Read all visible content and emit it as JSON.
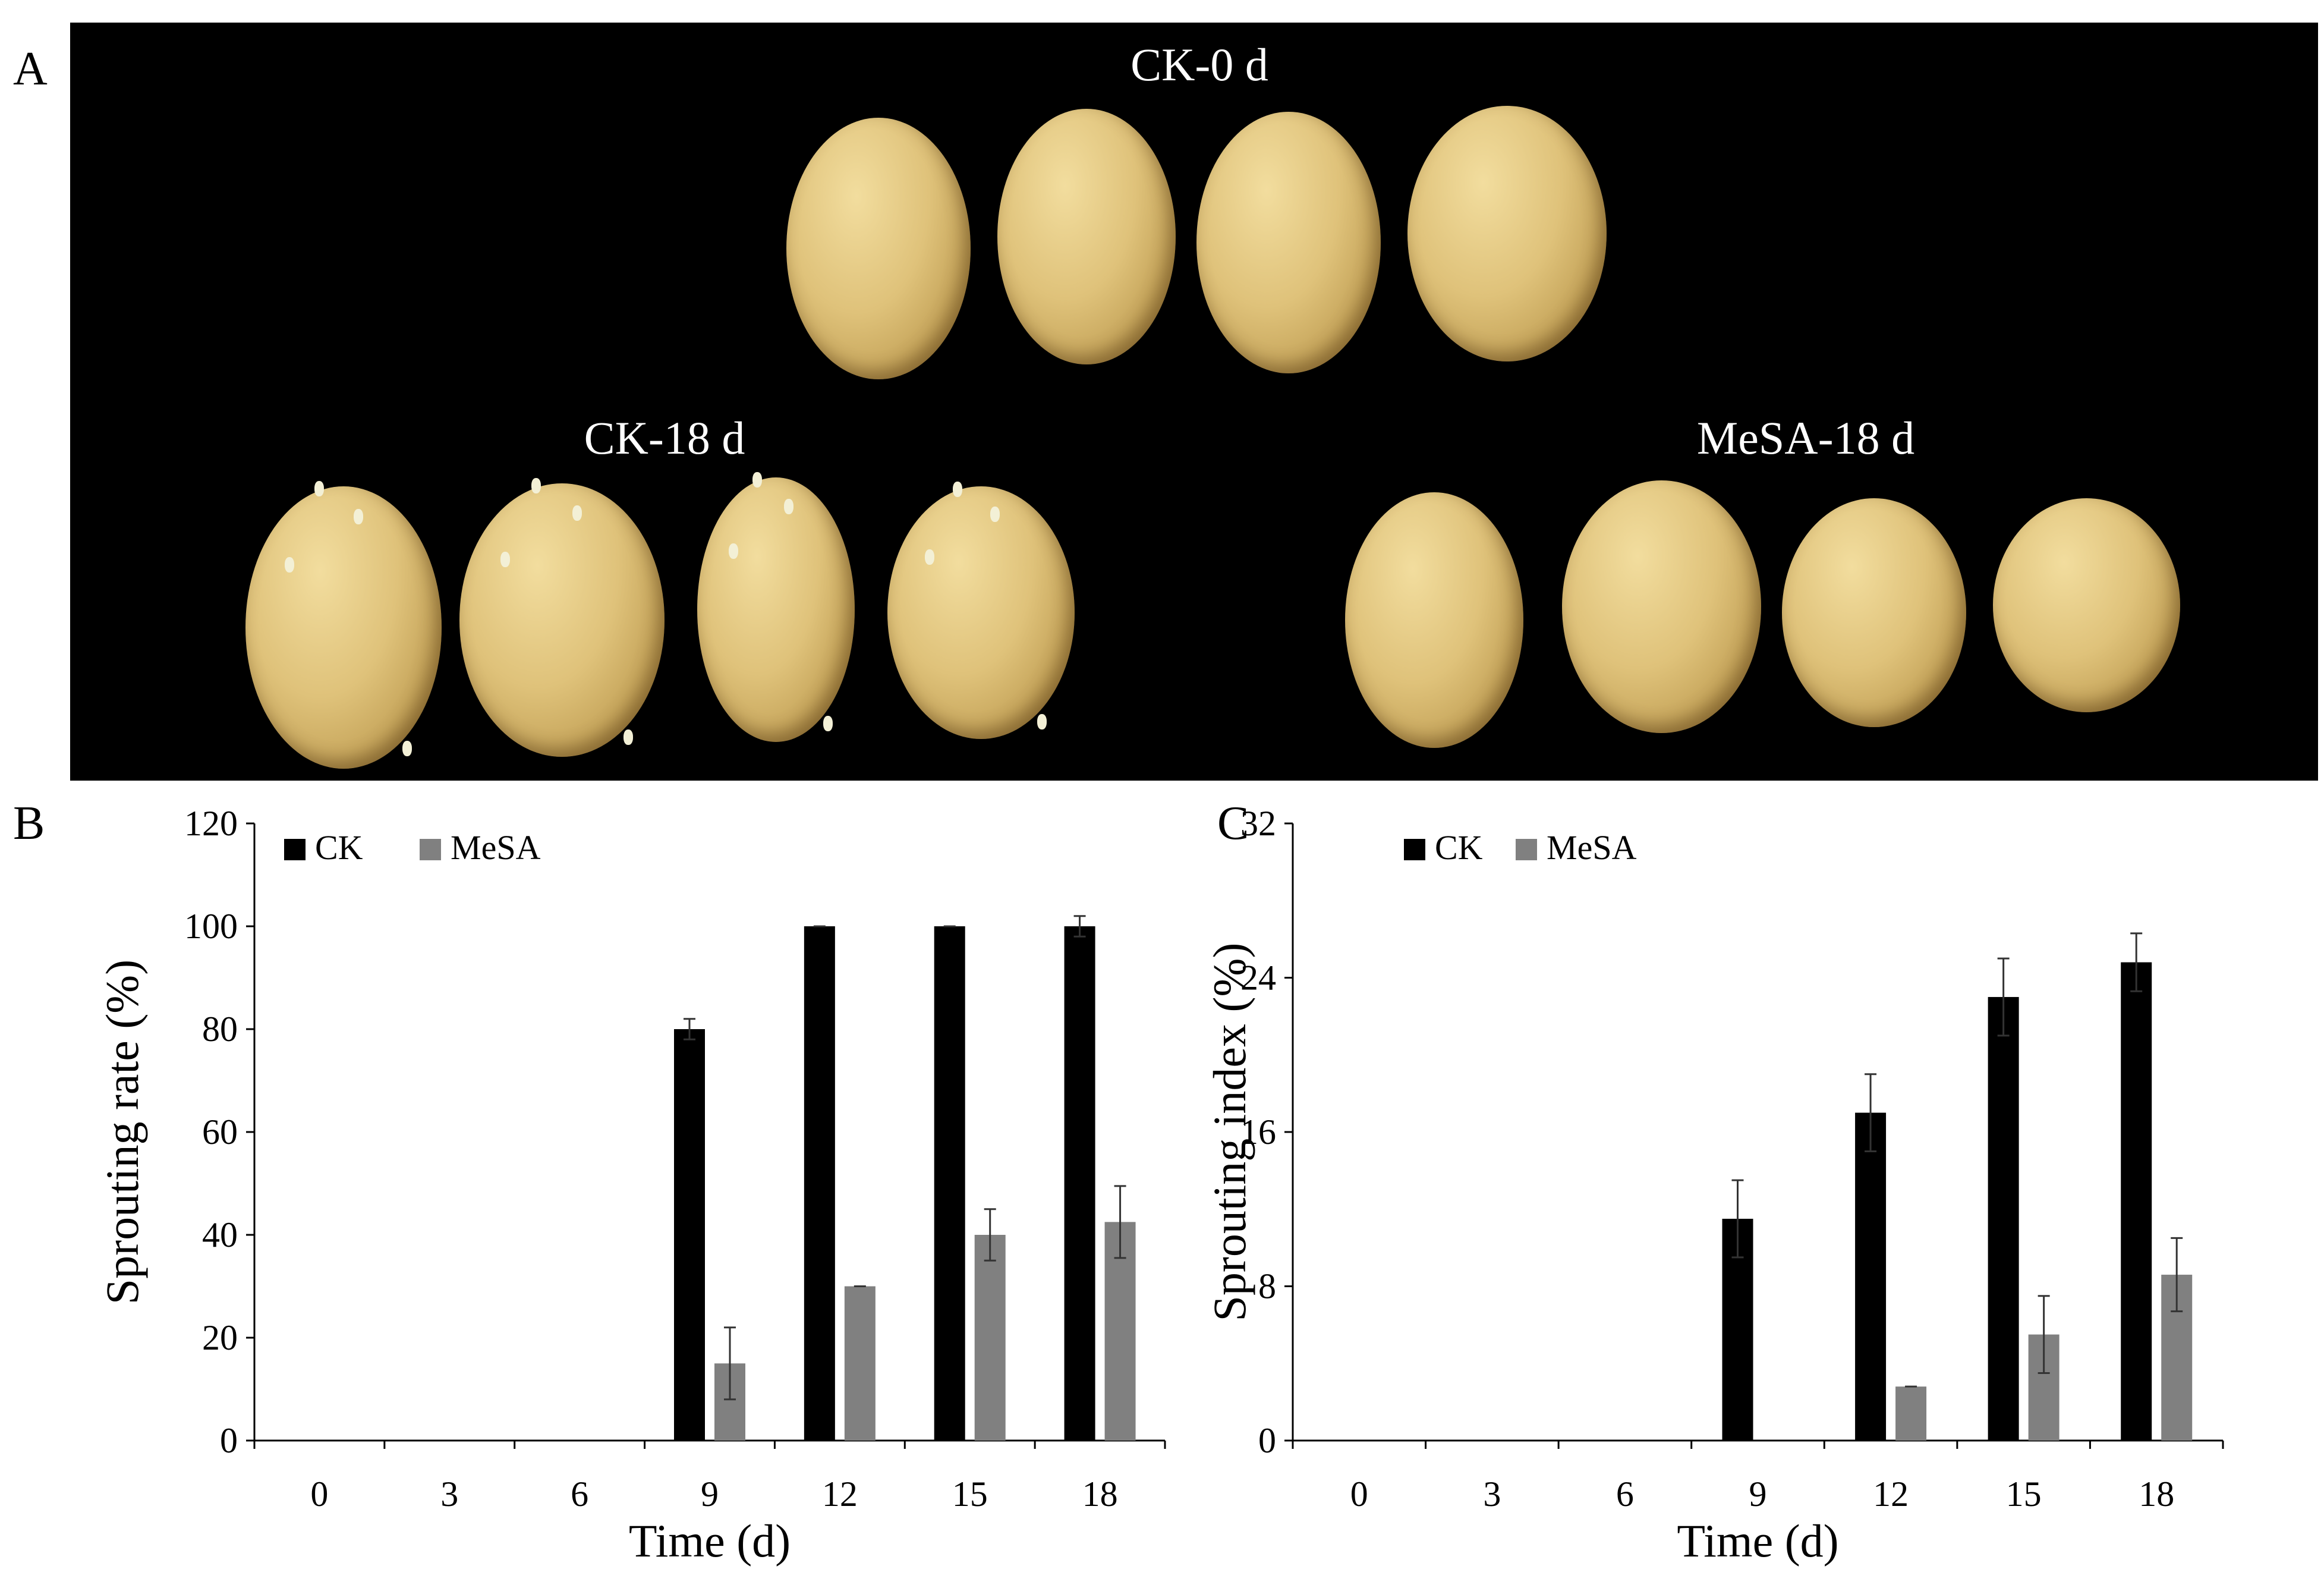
{
  "panels": {
    "a": {
      "letter": "A"
    },
    "b": {
      "letter": "B"
    },
    "c": {
      "letter": "C"
    }
  },
  "photo": {
    "groups": [
      {
        "id": "ck0",
        "label": "CK-0 d",
        "tubers": 4,
        "sprouted": false
      },
      {
        "id": "ck18",
        "label": "CK-18 d",
        "tubers": 4,
        "sprouted": true
      },
      {
        "id": "mesa18",
        "label": "MeSA-18 d",
        "tubers": 4,
        "sprouted": false
      }
    ],
    "colors": {
      "background": "#000000",
      "tuber": "#dfc27a",
      "sprout": "#f3f0d6"
    }
  },
  "chart_data": [
    {
      "id": "b",
      "type": "bar",
      "categories": [
        "0",
        "3",
        "6",
        "9",
        "12",
        "15",
        "18"
      ],
      "xlabel": "Time (d)",
      "ylabel": "Sprouting rate (%)",
      "ylim": [
        0,
        120
      ],
      "yticks": [
        "0",
        "20",
        "40",
        "60",
        "80",
        "100",
        "120"
      ],
      "legend_position": "top-left",
      "grid": false,
      "series": [
        {
          "name": "CK",
          "color": "#000000",
          "values": [
            0,
            0,
            0,
            80,
            100,
            100,
            100
          ],
          "errors": [
            0,
            0,
            0,
            2,
            0,
            0,
            2
          ]
        },
        {
          "name": "MeSA",
          "color": "#808080",
          "values": [
            0,
            0,
            0,
            15,
            30,
            40,
            42.5
          ],
          "errors": [
            0,
            0,
            0,
            7,
            0,
            5,
            7
          ]
        }
      ]
    },
    {
      "id": "c",
      "type": "bar",
      "categories": [
        "0",
        "3",
        "6",
        "9",
        "12",
        "15",
        "18"
      ],
      "xlabel": "Time (d)",
      "ylabel": "Sprouting index (%)",
      "ylim": [
        0,
        32
      ],
      "yticks": [
        "0",
        "8",
        "16",
        "24",
        "32"
      ],
      "legend_position": "top-left",
      "grid": false,
      "series": [
        {
          "name": "CK",
          "color": "#000000",
          "values": [
            0,
            0,
            0,
            11.5,
            17,
            23,
            24.8
          ],
          "errors": [
            0,
            0,
            0,
            2,
            2,
            2,
            1.5
          ]
        },
        {
          "name": "MeSA",
          "color": "#808080",
          "values": [
            0,
            0,
            0,
            0,
            2.8,
            5.5,
            8.6
          ],
          "errors": [
            0,
            0,
            0,
            0,
            0,
            2,
            1.9
          ]
        }
      ]
    }
  ]
}
